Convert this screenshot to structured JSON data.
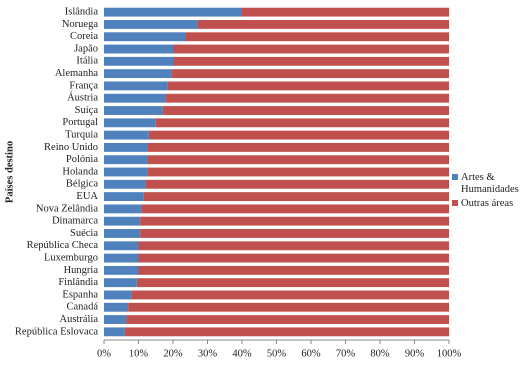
{
  "chart_data": {
    "type": "stacked_bar_horizontal",
    "y_label": "Países destino",
    "categories": [
      "Islândia",
      "Noruega",
      "Coreia",
      "Japão",
      "Itália",
      "Alemanha",
      "França",
      "Áustria",
      "Suíça",
      "Portugal",
      "Turquia",
      "Reino Unido",
      "Polónia",
      "Holanda",
      "Bélgica",
      "EUA",
      "Nova Zelândia",
      "Dinamarca",
      "Suécia",
      "República Checa",
      "Luxemburgo",
      "Hungria",
      "Finlândia",
      "Espanha",
      "Canadá",
      "Austrália",
      "República Eslovaca"
    ],
    "series": [
      {
        "name": "Artes & Humanidades",
        "color": "#4f81bd",
        "values": [
          40,
          27,
          23.5,
          20,
          20,
          19.5,
          18.5,
          18,
          17,
          15,
          13,
          12.5,
          12.5,
          12.5,
          12,
          11.5,
          11,
          10.5,
          10.5,
          10,
          10,
          10,
          9.5,
          8,
          7,
          6.5,
          6
        ]
      },
      {
        "name": "Outras áreas",
        "color": "#c0504d",
        "values": [
          60,
          73,
          76.5,
          80,
          80,
          80.5,
          81.5,
          82,
          83,
          85,
          87,
          87.5,
          87.5,
          87.5,
          88,
          88.5,
          89,
          89.5,
          89.5,
          90,
          90,
          90,
          90.5,
          92,
          93,
          93.5,
          94
        ]
      }
    ],
    "xlim": [
      0,
      100
    ],
    "xticks": [
      {
        "value": 0,
        "label": "0%"
      },
      {
        "value": 10,
        "label": "10%"
      },
      {
        "value": 20,
        "label": "20%"
      },
      {
        "value": 30,
        "label": "30%"
      },
      {
        "value": 40,
        "label": "40%"
      },
      {
        "value": 50,
        "label": "50%"
      },
      {
        "value": 60,
        "label": "60%"
      },
      {
        "value": 70,
        "label": "70%"
      },
      {
        "value": 80,
        "label": "80%"
      },
      {
        "value": 90,
        "label": "90%"
      },
      {
        "value": 100,
        "label": "100%"
      }
    ]
  }
}
